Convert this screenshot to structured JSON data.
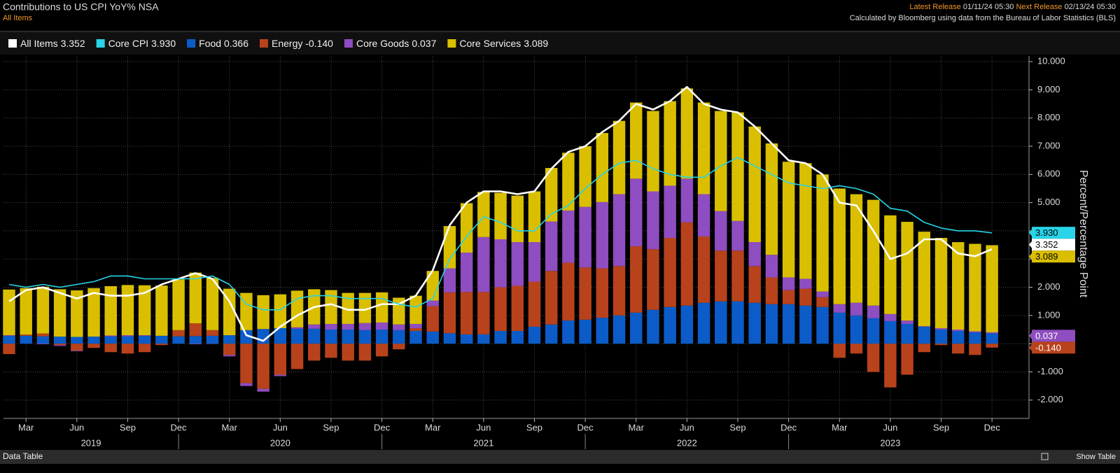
{
  "header": {
    "title": "Contributions to US CPI YoY% NSA",
    "subtitle": "All Items",
    "latest_release_label": "Latest Release",
    "latest_release": "01/11/24 05:30",
    "next_release_label": "Next Release",
    "next_release": "02/13/24 05:30",
    "source": "Calculated by Bloomberg using data from the Bureau of Labor Statistics (BLS)"
  },
  "chart_data": {
    "type": "combo",
    "categories": [
      null,
      "Mar",
      null,
      null,
      "Jun",
      null,
      null,
      "Sep",
      null,
      null,
      "Dec",
      null,
      null,
      "Mar",
      null,
      null,
      "Jun",
      null,
      null,
      "Sep",
      null,
      null,
      "Dec",
      null,
      null,
      "Mar",
      null,
      null,
      "Jun",
      null,
      null,
      "Sep",
      null,
      null,
      "Dec",
      null,
      null,
      "Mar",
      null,
      null,
      "Jun",
      null,
      null,
      "Sep",
      null,
      null,
      "Dec",
      null,
      null,
      "Mar",
      null,
      null,
      "Jun",
      null,
      null,
      "Sep",
      null,
      null,
      "Dec"
    ],
    "years": [
      "2019",
      "2020",
      "2021",
      "2022",
      "2023"
    ],
    "y_axis_label": "Percent/Percentage Point",
    "ylim": [
      -2.65,
      10.2
    ],
    "yticks": [
      {
        "value": -2,
        "label": "-2.000"
      },
      {
        "value": -1,
        "label": "-1.000"
      },
      {
        "value": 0,
        "label": "0.000"
      },
      {
        "value": 1,
        "label": "1.000"
      },
      {
        "value": 2,
        "label": "2.000"
      },
      {
        "value": 3,
        "label": "3.000"
      },
      {
        "value": 4,
        "label": "4.000"
      },
      {
        "value": 5,
        "label": "5.000"
      },
      {
        "value": 6,
        "label": "6.000"
      },
      {
        "value": 7,
        "label": "7.000"
      },
      {
        "value": 8,
        "label": "8.000"
      },
      {
        "value": 9,
        "label": "9.000"
      },
      {
        "value": 10,
        "label": "10.000"
      }
    ],
    "grid": true,
    "series": [
      {
        "name": "All Items",
        "type": "line",
        "color": "#ffffff",
        "last_label": "3.352",
        "axis_tag": true,
        "values": [
          1.5,
          1.9,
          2.0,
          1.8,
          1.6,
          1.8,
          1.7,
          1.7,
          1.8,
          2.1,
          2.3,
          2.5,
          2.3,
          1.5,
          0.3,
          0.1,
          0.6,
          1.0,
          1.3,
          1.4,
          1.2,
          1.2,
          1.4,
          1.4,
          1.7,
          2.6,
          4.2,
          5.0,
          5.4,
          5.4,
          5.3,
          5.4,
          6.2,
          6.8,
          7.0,
          7.5,
          7.9,
          8.5,
          8.3,
          8.6,
          9.1,
          8.5,
          8.3,
          8.2,
          7.7,
          7.1,
          6.5,
          6.4,
          6.0,
          5.0,
          4.9,
          4.0,
          3.0,
          3.2,
          3.7,
          3.7,
          3.2,
          3.1,
          3.352
        ]
      },
      {
        "name": "Core CPI",
        "type": "line",
        "color": "#27d4e8",
        "last_label": "3.930",
        "axis_tag": true,
        "values": [
          2.1,
          2.0,
          2.1,
          2.0,
          2.1,
          2.2,
          2.4,
          2.4,
          2.3,
          2.3,
          2.3,
          2.3,
          2.4,
          2.1,
          1.4,
          1.2,
          1.2,
          1.6,
          1.7,
          1.7,
          1.6,
          1.6,
          1.6,
          1.4,
          1.3,
          1.6,
          3.0,
          3.8,
          4.5,
          4.3,
          4.0,
          4.0,
          4.6,
          4.9,
          5.5,
          6.0,
          6.4,
          6.5,
          6.2,
          6.0,
          5.9,
          5.9,
          6.3,
          6.6,
          6.3,
          6.0,
          5.7,
          5.6,
          5.5,
          5.6,
          5.5,
          5.3,
          4.8,
          4.7,
          4.3,
          4.1,
          4.0,
          4.0,
          3.93
        ]
      },
      {
        "name": "Food",
        "type": "bar",
        "color": "#0b5cc8",
        "last_label": "0.366",
        "axis_tag": false,
        "values": [
          0.28,
          0.28,
          0.26,
          0.25,
          0.24,
          0.25,
          0.26,
          0.26,
          0.28,
          0.28,
          0.26,
          0.27,
          0.28,
          0.3,
          0.48,
          0.52,
          0.55,
          0.53,
          0.53,
          0.5,
          0.5,
          0.48,
          0.5,
          0.48,
          0.45,
          0.43,
          0.37,
          0.33,
          0.33,
          0.45,
          0.45,
          0.6,
          0.68,
          0.82,
          0.85,
          0.92,
          1.0,
          1.1,
          1.2,
          1.3,
          1.35,
          1.45,
          1.5,
          1.5,
          1.45,
          1.4,
          1.4,
          1.35,
          1.3,
          1.1,
          1.0,
          0.9,
          0.8,
          0.7,
          0.6,
          0.5,
          0.45,
          0.4,
          0.366
        ]
      },
      {
        "name": "Energy",
        "type": "bar",
        "color": "#b8421b",
        "last_label": "-0.140",
        "axis_tag": true,
        "values": [
          -0.37,
          0.04,
          0.1,
          -0.05,
          -0.25,
          -0.15,
          -0.3,
          -0.35,
          -0.3,
          -0.05,
          0.22,
          0.45,
          0.2,
          -0.4,
          -1.4,
          -1.6,
          -1.1,
          -0.9,
          -0.6,
          -0.5,
          -0.6,
          -0.6,
          -0.45,
          -0.2,
          0.1,
          0.9,
          1.45,
          1.5,
          1.5,
          1.55,
          1.6,
          1.6,
          1.9,
          2.05,
          1.85,
          1.75,
          1.75,
          2.35,
          2.15,
          2.45,
          2.95,
          2.35,
          1.8,
          1.8,
          1.3,
          0.95,
          0.5,
          0.6,
          0.35,
          -0.5,
          -0.35,
          -1.0,
          -1.55,
          -1.1,
          -0.3,
          -0.05,
          -0.35,
          -0.4,
          -0.14
        ]
      },
      {
        "name": "Core Goods",
        "type": "bar",
        "color": "#8e4dc0",
        "last_label": "0.037",
        "axis_tag": true,
        "values": [
          0.02,
          0.0,
          -0.02,
          -0.03,
          -0.02,
          0.0,
          0.03,
          0.04,
          0.02,
          0.0,
          0.0,
          -0.02,
          -0.01,
          -0.05,
          -0.1,
          -0.1,
          -0.05,
          0.05,
          0.15,
          0.2,
          0.2,
          0.25,
          0.25,
          0.2,
          0.15,
          0.2,
          0.85,
          1.4,
          1.95,
          1.7,
          1.55,
          1.4,
          1.75,
          1.85,
          2.15,
          2.35,
          2.55,
          2.4,
          2.05,
          1.85,
          1.55,
          1.5,
          1.4,
          1.05,
          0.85,
          0.8,
          0.45,
          0.35,
          0.2,
          0.3,
          0.45,
          0.45,
          0.25,
          0.12,
          0.02,
          0.05,
          0.05,
          0.04,
          0.037
        ]
      },
      {
        "name": "Core Services",
        "type": "bar",
        "color": "#d9bf00",
        "last_label": "3.089",
        "axis_tag": true,
        "values": [
          1.62,
          1.65,
          1.66,
          1.68,
          1.65,
          1.72,
          1.75,
          1.78,
          1.77,
          1.78,
          1.8,
          1.8,
          1.85,
          1.65,
          1.32,
          1.2,
          1.2,
          1.3,
          1.25,
          1.2,
          1.1,
          1.07,
          1.07,
          0.95,
          1.0,
          1.05,
          1.5,
          1.75,
          1.6,
          1.65,
          1.65,
          1.8,
          1.9,
          2.05,
          2.15,
          2.45,
          2.6,
          2.7,
          2.85,
          3.0,
          3.2,
          3.25,
          3.55,
          3.85,
          4.1,
          3.95,
          4.1,
          4.1,
          4.15,
          4.1,
          3.85,
          3.75,
          3.5,
          3.5,
          3.35,
          3.2,
          3.1,
          3.1,
          3.089
        ]
      }
    ]
  },
  "footer": {
    "left": "Data Table",
    "right": "Show Table"
  }
}
